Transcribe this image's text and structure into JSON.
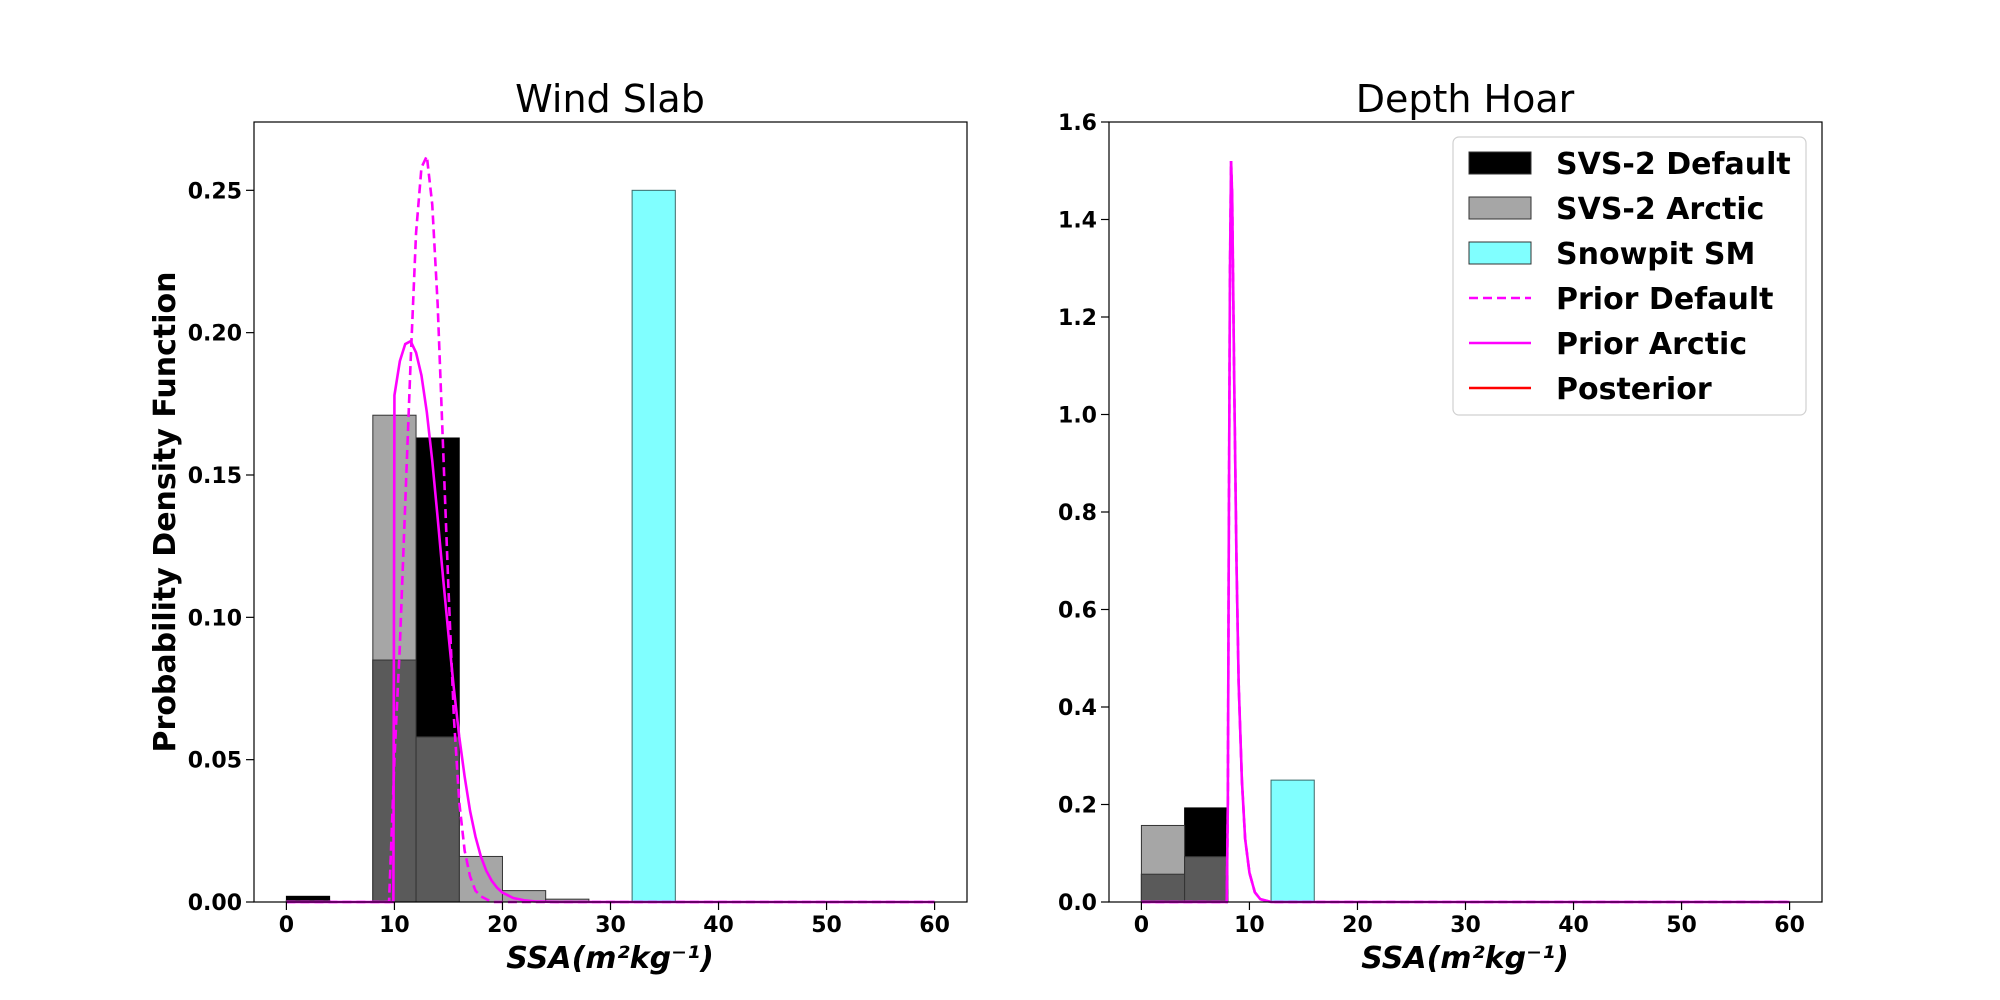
{
  "chart_data": [
    {
      "type": "bar",
      "title": "Wind Slab",
      "xlabel": "SSA(m²kg⁻¹)",
      "ylabel": "Probability Density Function",
      "xlim": [
        -3,
        63
      ],
      "ylim": [
        0,
        0.274
      ],
      "xticks": [
        0,
        10,
        20,
        30,
        40,
        50,
        60
      ],
      "yticks": [
        0.0,
        0.05,
        0.1,
        0.15,
        0.2,
        0.25
      ],
      "ytick_labels": [
        "0.00",
        "0.05",
        "0.10",
        "0.15",
        "0.20",
        "0.25"
      ],
      "bin_width": 4,
      "bin_edges": [
        0,
        4,
        8,
        12,
        16,
        20,
        24,
        28,
        32,
        36,
        40,
        44,
        48,
        52,
        56,
        60
      ],
      "series": [
        {
          "name": "SVS-2 Default",
          "type": "hist",
          "color": "#000000",
          "values": [
            0.002,
            0,
            0.085,
            0.163,
            0,
            0,
            0,
            0,
            0,
            0,
            0,
            0,
            0,
            0,
            0
          ]
        },
        {
          "name": "SVS-2 Arctic",
          "type": "hist",
          "color": "#a6a6a6",
          "values": [
            0.0005,
            0,
            0.171,
            0.058,
            0.016,
            0.004,
            0.001,
            0,
            0,
            0,
            0,
            0,
            0,
            0,
            0
          ]
        },
        {
          "name": "Snowpit SM",
          "type": "hist",
          "color": "#80ffff",
          "values": [
            0,
            0,
            0,
            0,
            0,
            0,
            0,
            0,
            0.25,
            0,
            0,
            0,
            0,
            0,
            0
          ]
        },
        {
          "name": "Prior Default",
          "type": "line",
          "style": "dashed",
          "color": "#ff00ff",
          "x": [
            0,
            9.5,
            10,
            10.5,
            11,
            11.5,
            12,
            12.5,
            13,
            13.5,
            14,
            14.5,
            15,
            15.5,
            16,
            16.5,
            17,
            17.5,
            18,
            18.5,
            19,
            20,
            60
          ],
          "y": [
            0,
            0,
            0.05,
            0.09,
            0.14,
            0.19,
            0.235,
            0.258,
            0.262,
            0.245,
            0.21,
            0.16,
            0.11,
            0.065,
            0.035,
            0.018,
            0.009,
            0.004,
            0.002,
            0.001,
            0,
            0,
            0
          ]
        },
        {
          "name": "Prior Arctic",
          "type": "line",
          "style": "solid",
          "color": "#ff00ff",
          "x": [
            0,
            9.9,
            10,
            10.5,
            11,
            11.5,
            12,
            12.5,
            13,
            13.5,
            14,
            14.5,
            15,
            15.5,
            16,
            16.5,
            17,
            17.5,
            18,
            18.5,
            19,
            19.5,
            20,
            21,
            22,
            23,
            24,
            25,
            60
          ],
          "y": [
            0,
            0,
            0.178,
            0.19,
            0.196,
            0.197,
            0.193,
            0.185,
            0.172,
            0.155,
            0.135,
            0.114,
            0.094,
            0.075,
            0.058,
            0.044,
            0.032,
            0.023,
            0.016,
            0.011,
            0.0075,
            0.005,
            0.0033,
            0.0014,
            0.0006,
            0.0002,
            0.0001,
            0,
            0
          ]
        },
        {
          "name": "Posterior",
          "type": "line",
          "style": "solid",
          "color": "#ff0000",
          "x": [],
          "y": []
        }
      ]
    },
    {
      "type": "bar",
      "title": "Depth Hoar",
      "xlabel": "SSA(m²kg⁻¹)",
      "ylabel": "",
      "xlim": [
        -3,
        63
      ],
      "ylim": [
        0,
        1.6
      ],
      "xticks": [
        0,
        10,
        20,
        30,
        40,
        50,
        60
      ],
      "yticks": [
        0.0,
        0.2,
        0.4,
        0.6,
        0.8,
        1.0,
        1.2,
        1.4,
        1.6
      ],
      "ytick_labels": [
        "0.0",
        "0.2",
        "0.4",
        "0.6",
        "0.8",
        "1.0",
        "1.2",
        "1.4",
        "1.6"
      ],
      "bin_width": 4,
      "bin_edges": [
        0,
        4,
        8,
        12,
        16,
        20,
        24,
        28,
        32,
        36,
        40,
        44,
        48,
        52,
        56,
        60
      ],
      "legend": {
        "position": "upper right"
      },
      "series": [
        {
          "name": "SVS-2 Default",
          "type": "hist",
          "color": "#000000",
          "values": [
            0.057,
            0.193,
            0,
            0,
            0,
            0,
            0,
            0,
            0,
            0,
            0,
            0,
            0,
            0,
            0
          ]
        },
        {
          "name": "SVS-2 Arctic",
          "type": "hist",
          "color": "#a6a6a6",
          "values": [
            0.157,
            0.093,
            0,
            0,
            0,
            0,
            0,
            0,
            0,
            0,
            0,
            0,
            0,
            0,
            0
          ]
        },
        {
          "name": "Snowpit SM",
          "type": "hist",
          "color": "#80ffff",
          "values": [
            0,
            0,
            0,
            0.25,
            0,
            0,
            0,
            0,
            0,
            0,
            0,
            0,
            0,
            0,
            0
          ]
        },
        {
          "name": "Prior Default",
          "type": "line",
          "style": "dashed",
          "color": "#ff00ff",
          "x": [
            0,
            7.9,
            8.0,
            8.1,
            8.2,
            8.3,
            8.4,
            8.6,
            8.8,
            9.0,
            9.3,
            9.6,
            10.0,
            10.5,
            11,
            12,
            60
          ],
          "y": [
            0,
            0,
            0.2,
            0.8,
            1.3,
            1.52,
            1.45,
            1.05,
            0.7,
            0.45,
            0.25,
            0.13,
            0.06,
            0.02,
            0.006,
            0,
            0
          ]
        },
        {
          "name": "Prior Arctic",
          "type": "line",
          "style": "solid",
          "color": "#ff00ff",
          "x": [
            0,
            7.9,
            8.0,
            8.1,
            8.2,
            8.3,
            8.4,
            8.6,
            8.8,
            9.0,
            9.3,
            9.6,
            10.0,
            10.5,
            11,
            12,
            60
          ],
          "y": [
            0,
            0,
            0.2,
            0.8,
            1.3,
            1.52,
            1.45,
            1.05,
            0.7,
            0.45,
            0.25,
            0.13,
            0.06,
            0.02,
            0.006,
            0,
            0
          ]
        },
        {
          "name": "Posterior",
          "type": "line",
          "style": "solid",
          "color": "#ff0000",
          "x": [],
          "y": []
        }
      ]
    }
  ],
  "legend": {
    "entries": [
      {
        "label": "SVS-2 Default",
        "kind": "patch",
        "color": "#000000"
      },
      {
        "label": "SVS-2 Arctic",
        "kind": "patch",
        "color": "#a6a6a6"
      },
      {
        "label": "Snowpit SM",
        "kind": "patch",
        "color": "#80ffff"
      },
      {
        "label": "Prior Default",
        "kind": "dashed",
        "color": "#ff00ff"
      },
      {
        "label": "Prior Arctic",
        "kind": "line",
        "color": "#ff00ff"
      },
      {
        "label": "Posterior",
        "kind": "line",
        "color": "#ff0000"
      }
    ]
  }
}
